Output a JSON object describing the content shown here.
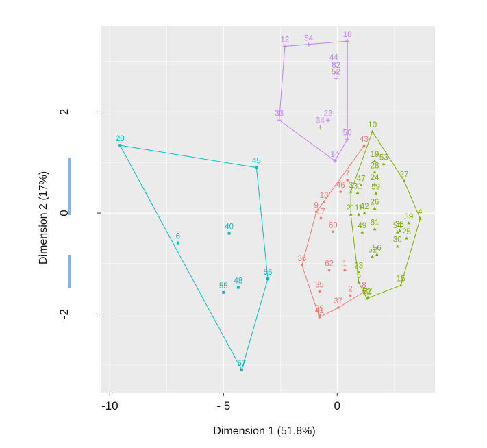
{
  "chart_data": {
    "type": "scatter",
    "xlabel": "Dimension 1 (51.8%)",
    "ylabel": "Dimension 2 (17%)",
    "xlim": [
      -10.4,
      4.3
    ],
    "ylim": [
      -3.55,
      3.7
    ],
    "x_ticks": [
      -10,
      -5,
      0
    ],
    "x_tick_labels": [
      "-10",
      "- 5",
      "0"
    ],
    "y_ticks": [
      -2,
      0,
      2
    ],
    "y_tick_labels": [
      "-2",
      "0",
      "2"
    ],
    "grid": true,
    "legend": "none",
    "series": [
      {
        "color": "#F8766D",
        "marker": "circle",
        "points": [
          {
            "label": "1",
            "x": 0.33,
            "y": -1.13
          },
          {
            "label": "2",
            "x": 0.58,
            "y": -1.63
          },
          {
            "label": "7",
            "x": 0.45,
            "y": 0.65
          },
          {
            "label": "8",
            "x": 1.18,
            "y": -1.56
          },
          {
            "label": "9",
            "x": -0.92,
            "y": 0.02
          },
          {
            "label": "13",
            "x": -0.58,
            "y": 0.22
          },
          {
            "label": "17",
            "x": -0.72,
            "y": -0.1
          },
          {
            "label": "29",
            "x": -0.78,
            "y": -2.02
          },
          {
            "label": "35",
            "x": -0.78,
            "y": -1.55
          },
          {
            "label": "36",
            "x": -1.55,
            "y": -1.03
          },
          {
            "label": "37",
            "x": 0.05,
            "y": -1.87
          },
          {
            "label": "41",
            "x": -0.78,
            "y": -2.06
          },
          {
            "label": "43",
            "x": 1.18,
            "y": 1.33
          },
          {
            "label": "46",
            "x": 0.15,
            "y": 0.42
          },
          {
            "label": "60",
            "x": -0.18,
            "y": -0.37
          },
          {
            "label": "62",
            "x": -0.35,
            "y": -1.13
          }
        ]
      },
      {
        "color": "#7CAE00",
        "marker": "triangle",
        "points": [
          {
            "label": "3",
            "x": 0.6,
            "y": 0.42
          },
          {
            "label": "4",
            "x": 3.65,
            "y": -0.11
          },
          {
            "label": "5",
            "x": 0.95,
            "y": -1.37
          },
          {
            "label": "10",
            "x": 1.55,
            "y": 1.61
          },
          {
            "label": "11",
            "x": 0.95,
            "y": -0.03
          },
          {
            "label": "15",
            "x": 2.8,
            "y": -1.43
          },
          {
            "label": "19",
            "x": 1.65,
            "y": 1.03
          },
          {
            "label": "21",
            "x": 0.6,
            "y": -0.03
          },
          {
            "label": "23",
            "x": 0.95,
            "y": -1.17
          },
          {
            "label": "24",
            "x": 1.65,
            "y": 0.57
          },
          {
            "label": "25",
            "x": 3.05,
            "y": -0.5
          },
          {
            "label": "26",
            "x": 1.65,
            "y": 0.09
          },
          {
            "label": "27",
            "x": 2.95,
            "y": 0.63
          },
          {
            "label": "28",
            "x": 1.65,
            "y": 0.81
          },
          {
            "label": "30",
            "x": 2.65,
            "y": -0.66
          },
          {
            "label": "31",
            "x": 0.9,
            "y": 0.4
          },
          {
            "label": "32",
            "x": 1.35,
            "y": -1.67
          },
          {
            "label": "38",
            "x": 2.75,
            "y": -0.35
          },
          {
            "label": "39",
            "x": 3.15,
            "y": -0.2
          },
          {
            "label": "42",
            "x": 1.2,
            "y": 0.0
          },
          {
            "label": "47",
            "x": 1.05,
            "y": 0.55
          },
          {
            "label": "49",
            "x": 1.1,
            "y": -0.38
          },
          {
            "label": "51",
            "x": 1.55,
            "y": -0.86
          },
          {
            "label": "52",
            "x": 1.3,
            "y": -1.69
          },
          {
            "label": "53",
            "x": 2.05,
            "y": 0.97
          },
          {
            "label": "54",
            "x": 2.65,
            "y": -0.38
          },
          {
            "label": "56",
            "x": 1.75,
            "y": -0.82
          },
          {
            "label": "59",
            "x": 1.7,
            "y": 0.39
          },
          {
            "label": "61",
            "x": 1.65,
            "y": -0.32
          }
        ]
      },
      {
        "color": "#00BFC4",
        "marker": "square",
        "points": [
          {
            "label": "6",
            "x": -7.0,
            "y": -0.59
          },
          {
            "label": "20",
            "x": -9.55,
            "y": 1.34
          },
          {
            "label": "40",
            "x": -4.75,
            "y": -0.4
          },
          {
            "label": "45",
            "x": -3.55,
            "y": 0.9
          },
          {
            "label": "48",
            "x": -4.35,
            "y": -1.47
          },
          {
            "label": "55",
            "x": -5.0,
            "y": -1.57
          },
          {
            "label": "56",
            "x": -3.05,
            "y": -1.3
          },
          {
            "label": "57",
            "x": -4.2,
            "y": -3.1
          }
        ]
      },
      {
        "color": "#C77CFF",
        "marker": "plus",
        "points": [
          {
            "label": "12",
            "x": -2.3,
            "y": 3.3
          },
          {
            "label": "14",
            "x": -0.1,
            "y": 1.03
          },
          {
            "label": "18",
            "x": 0.45,
            "y": 3.4
          },
          {
            "label": "22",
            "x": -0.4,
            "y": 1.84
          },
          {
            "label": "33",
            "x": -2.55,
            "y": 1.84
          },
          {
            "label": "34",
            "x": -0.75,
            "y": 1.7
          },
          {
            "label": "44",
            "x": -0.15,
            "y": 2.95
          },
          {
            "label": "50",
            "x": 0.45,
            "y": 1.46
          },
          {
            "label": "52",
            "x": -0.05,
            "y": 2.66
          },
          {
            "label": "54",
            "x": -1.25,
            "y": 3.33
          },
          {
            "label": "82",
            "x": -0.05,
            "y": 2.79
          }
        ]
      }
    ]
  }
}
